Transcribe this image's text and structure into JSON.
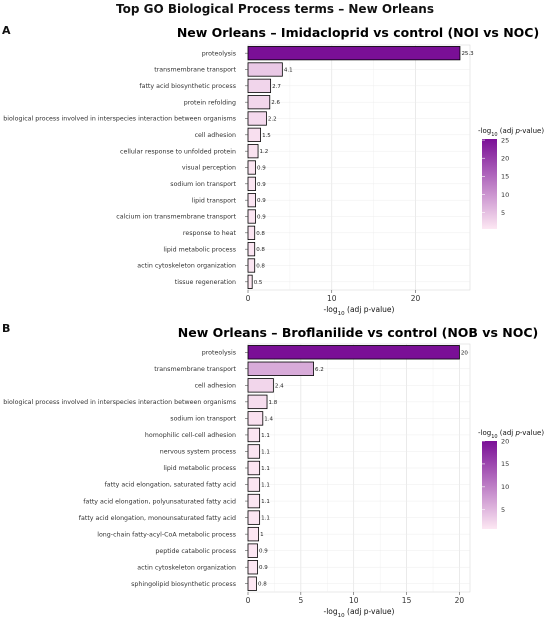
{
  "figure_title": "Top GO Biological Process terms – New Orleans",
  "chart_data": [
    {
      "panel": "A",
      "type": "bar",
      "orientation": "horizontal",
      "title": "New Orleans – Imidacloprid vs control (NOI vs NOC)",
      "xlabel": "-log10 (adj p-value)",
      "xlabel_base": "-log",
      "xlabel_sub": "10",
      "xlabel_rest": " (adj p-value)",
      "legend_title_base": "-log",
      "legend_title_sub": "10",
      "legend_title_rest": " (adj ",
      "legend_title_italic": "p",
      "legend_title_end": "-value)",
      "legend_ticks": [
        5,
        10,
        15,
        20,
        25
      ],
      "legend_placement": "right",
      "color_low": "#fde8f3",
      "color_high": "#7a0f96",
      "xlim": [
        0,
        26.5
      ],
      "xticks": [
        0,
        10,
        20
      ],
      "grid": true,
      "categories": [
        "proteolysis",
        "transmembrane transport",
        "fatty acid biosynthetic process",
        "protein refolding",
        "biological process involved in interspecies interaction between organisms",
        "cell adhesion",
        "cellular response to unfolded protein",
        "visual perception",
        "sodium ion transport",
        "lipid transport",
        "calcium ion transmembrane transport",
        "response to heat",
        "lipid metabolic process",
        "actin cytoskeleton organization",
        "tissue regeneration"
      ],
      "values": [
        25.3,
        4.1,
        2.7,
        2.6,
        2.2,
        1.5,
        1.2,
        0.9,
        0.9,
        0.9,
        0.9,
        0.8,
        0.8,
        0.8,
        0.5
      ],
      "labels": [
        "25.3",
        "4.1",
        "2.7",
        "2.6",
        "2.2",
        "1.5",
        "1.2",
        "0.9",
        "0.9",
        "0.9",
        "0.9",
        "0.8",
        "0.8",
        "0.8",
        "0.5"
      ]
    },
    {
      "panel": "B",
      "type": "bar",
      "orientation": "horizontal",
      "title": "New Orleans – Broflanilide vs control (NOB vs NOC)",
      "xlabel": "-log10 (adj p-value)",
      "xlabel_base": "-log",
      "xlabel_sub": "10",
      "xlabel_rest": " (adj p-value)",
      "legend_title_base": "-log",
      "legend_title_sub": "10",
      "legend_title_rest": " (adj ",
      "legend_title_italic": "p",
      "legend_title_end": "-value)",
      "legend_ticks": [
        5,
        10,
        15,
        20
      ],
      "legend_placement": "right",
      "color_low": "#fde8f3",
      "color_high": "#7a0f96",
      "xlim": [
        0,
        21.0
      ],
      "xticks": [
        0,
        5,
        10,
        15,
        20
      ],
      "grid": true,
      "categories": [
        "proteolysis",
        "transmembrane transport",
        "cell adhesion",
        "biological process involved in interspecies interaction between organisms",
        "sodium ion transport",
        "homophilic cell-cell adhesion",
        "nervous system process",
        "lipid metabolic process",
        "fatty acid elongation, saturated fatty acid",
        "fatty acid elongation, polyunsaturated fatty acid",
        "fatty acid elongation, monounsaturated fatty acid",
        "long-chain fatty-acyl-CoA metabolic process",
        "peptide catabolic process",
        "actin cytoskeleton organization",
        "sphingolipid biosynthetic process"
      ],
      "values": [
        20,
        6.2,
        2.4,
        1.8,
        1.4,
        1.1,
        1.1,
        1.1,
        1.1,
        1.1,
        1.1,
        1,
        0.9,
        0.9,
        0.8
      ],
      "labels": [
        "20",
        "6.2",
        "2.4",
        "1.8",
        "1.4",
        "1.1",
        "1.1",
        "1.1",
        "1.1",
        "1.1",
        "1.1",
        "1",
        "0.9",
        "0.9",
        "0.8"
      ]
    }
  ]
}
